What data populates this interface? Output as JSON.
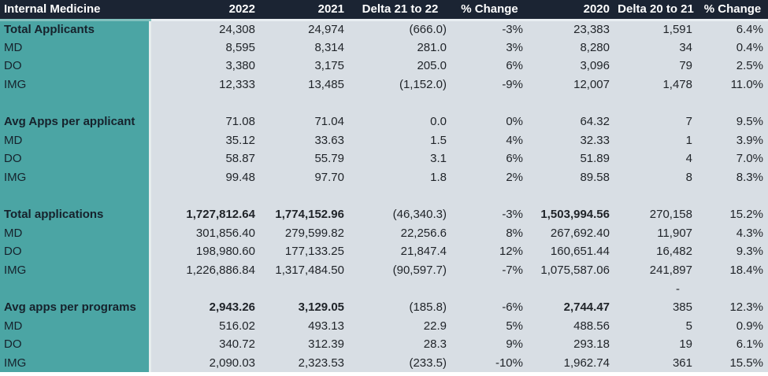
{
  "colors": {
    "header_bg": "#1B2433",
    "header_text": "#FFFFFF",
    "label_column_bg": "#4BA5A4",
    "body_bg": "#D8DEE4",
    "positive_green": "#21A05F",
    "negative_red": "#C2262E",
    "text": "#1F2328"
  },
  "chart_data": {
    "type": "table",
    "title": "Internal Medicine",
    "columns": [
      "2022",
      "2021",
      "Delta 21 to 22",
      "% Change",
      "2020",
      "Delta 20 to 21",
      "% Change"
    ],
    "rows": [
      {
        "label": "Total Applicants",
        "bold": true,
        "cells": [
          {
            "t": "24,308",
            "c": "black"
          },
          {
            "t": "24,974",
            "c": "black"
          },
          {
            "t": "(666.0)",
            "c": "red"
          },
          {
            "t": "-3%",
            "c": "red"
          },
          {
            "t": "23,383",
            "c": "black"
          },
          {
            "t": "1,591",
            "c": "green"
          },
          {
            "t": "6.4%",
            "c": "green"
          }
        ]
      },
      {
        "label": "MD",
        "bold": false,
        "cells": [
          {
            "t": "8,595",
            "c": "black"
          },
          {
            "t": "8,314",
            "c": "black"
          },
          {
            "t": "281.0",
            "c": "green"
          },
          {
            "t": "3%",
            "c": "green"
          },
          {
            "t": "8,280",
            "c": "black"
          },
          {
            "t": "34",
            "c": "green"
          },
          {
            "t": "0.4%",
            "c": "green"
          }
        ]
      },
      {
        "label": "DO",
        "bold": false,
        "cells": [
          {
            "t": "3,380",
            "c": "black"
          },
          {
            "t": "3,175",
            "c": "black"
          },
          {
            "t": "205.0",
            "c": "green"
          },
          {
            "t": "6%",
            "c": "green"
          },
          {
            "t": "3,096",
            "c": "black"
          },
          {
            "t": "79",
            "c": "green"
          },
          {
            "t": "2.5%",
            "c": "green"
          }
        ]
      },
      {
        "label": "IMG",
        "bold": false,
        "cells": [
          {
            "t": "12,333",
            "c": "black"
          },
          {
            "t": "13,485",
            "c": "black"
          },
          {
            "t": "(1,152.0)",
            "c": "red"
          },
          {
            "t": "-9%",
            "c": "red"
          },
          {
            "t": "12,007",
            "c": "black"
          },
          {
            "t": "1,478",
            "c": "green"
          },
          {
            "t": "11.0%",
            "c": "green"
          }
        ]
      },
      {
        "label": "",
        "bold": false,
        "cells": [
          {
            "t": ""
          },
          {
            "t": ""
          },
          {
            "t": ""
          },
          {
            "t": ""
          },
          {
            "t": ""
          },
          {
            "t": ""
          },
          {
            "t": ""
          }
        ]
      },
      {
        "label": "Avg Apps per applicant",
        "bold": true,
        "cells": [
          {
            "t": "71.08",
            "c": "black"
          },
          {
            "t": "71.04",
            "c": "black"
          },
          {
            "t": "0.0",
            "c": "green"
          },
          {
            "t": "0%",
            "c": "green"
          },
          {
            "t": "64.32",
            "c": "black"
          },
          {
            "t": "7",
            "c": "green"
          },
          {
            "t": "9.5%",
            "c": "green"
          }
        ]
      },
      {
        "label": "MD",
        "bold": false,
        "cells": [
          {
            "t": "35.12",
            "c": "black"
          },
          {
            "t": "33.63",
            "c": "black"
          },
          {
            "t": "1.5",
            "c": "green"
          },
          {
            "t": "4%",
            "c": "green"
          },
          {
            "t": "32.33",
            "c": "black"
          },
          {
            "t": "1",
            "c": "green"
          },
          {
            "t": "3.9%",
            "c": "green"
          }
        ]
      },
      {
        "label": "DO",
        "bold": false,
        "cells": [
          {
            "t": "58.87",
            "c": "black"
          },
          {
            "t": "55.79",
            "c": "black"
          },
          {
            "t": "3.1",
            "c": "green"
          },
          {
            "t": "6%",
            "c": "green"
          },
          {
            "t": "51.89",
            "c": "black"
          },
          {
            "t": "4",
            "c": "green"
          },
          {
            "t": "7.0%",
            "c": "green"
          }
        ]
      },
      {
        "label": "IMG",
        "bold": false,
        "cells": [
          {
            "t": "99.48",
            "c": "black"
          },
          {
            "t": "97.70",
            "c": "black"
          },
          {
            "t": "1.8",
            "c": "green"
          },
          {
            "t": "2%",
            "c": "green"
          },
          {
            "t": "89.58",
            "c": "black"
          },
          {
            "t": "8",
            "c": "green"
          },
          {
            "t": "8.3%",
            "c": "green"
          }
        ]
      },
      {
        "label": "",
        "bold": false,
        "cells": [
          {
            "t": ""
          },
          {
            "t": ""
          },
          {
            "t": ""
          },
          {
            "t": ""
          },
          {
            "t": ""
          },
          {
            "t": ""
          },
          {
            "t": ""
          }
        ]
      },
      {
        "label": "Total applications",
        "bold": true,
        "cells": [
          {
            "t": "1,727,812.64",
            "c": "black",
            "b": true
          },
          {
            "t": "1,774,152.96",
            "c": "black",
            "b": true
          },
          {
            "t": "(46,340.3)",
            "c": "red"
          },
          {
            "t": "-3%",
            "c": "red"
          },
          {
            "t": "1,503,994.56",
            "c": "black",
            "b": true
          },
          {
            "t": "270,158",
            "c": "green"
          },
          {
            "t": "15.2%",
            "c": "green"
          }
        ]
      },
      {
        "label": "MD",
        "bold": false,
        "cells": [
          {
            "t": "301,856.40",
            "c": "black"
          },
          {
            "t": "279,599.82",
            "c": "black"
          },
          {
            "t": "22,256.6",
            "c": "green"
          },
          {
            "t": "8%",
            "c": "green"
          },
          {
            "t": "267,692.40",
            "c": "black"
          },
          {
            "t": "11,907",
            "c": "green"
          },
          {
            "t": "4.3%",
            "c": "green"
          }
        ]
      },
      {
        "label": "DO",
        "bold": false,
        "cells": [
          {
            "t": "198,980.60",
            "c": "black"
          },
          {
            "t": "177,133.25",
            "c": "black"
          },
          {
            "t": "21,847.4",
            "c": "green"
          },
          {
            "t": "12%",
            "c": "green"
          },
          {
            "t": "160,651.44",
            "c": "black"
          },
          {
            "t": "16,482",
            "c": "green"
          },
          {
            "t": "9.3%",
            "c": "green"
          }
        ]
      },
      {
        "label": "IMG",
        "bold": false,
        "cells": [
          {
            "t": "1,226,886.84",
            "c": "black"
          },
          {
            "t": "1,317,484.50",
            "c": "black"
          },
          {
            "t": "(90,597.7)",
            "c": "red"
          },
          {
            "t": "-7%",
            "c": "red"
          },
          {
            "t": "1,075,587.06",
            "c": "black"
          },
          {
            "t": "241,897",
            "c": "green"
          },
          {
            "t": "18.4%",
            "c": "green"
          }
        ]
      },
      {
        "label": "",
        "bold": false,
        "cells": [
          {
            "t": ""
          },
          {
            "t": ""
          },
          {
            "t": ""
          },
          {
            "t": ""
          },
          {
            "t": ""
          },
          {
            "t": "-",
            "c": "green",
            "dash": true
          },
          {
            "t": ""
          }
        ]
      },
      {
        "label": "Avg apps per programs",
        "bold": true,
        "cells": [
          {
            "t": "2,943.26",
            "c": "black",
            "b": true
          },
          {
            "t": "3,129.05",
            "c": "black",
            "b": true
          },
          {
            "t": "(185.8)",
            "c": "red"
          },
          {
            "t": "-6%",
            "c": "red"
          },
          {
            "t": "2,744.47",
            "c": "black",
            "b": true
          },
          {
            "t": "385",
            "c": "green"
          },
          {
            "t": "12.3%",
            "c": "green"
          }
        ]
      },
      {
        "label": "MD",
        "bold": false,
        "cells": [
          {
            "t": "516.02",
            "c": "black"
          },
          {
            "t": "493.13",
            "c": "black"
          },
          {
            "t": "22.9",
            "c": "green"
          },
          {
            "t": "5%",
            "c": "green"
          },
          {
            "t": "488.56",
            "c": "black"
          },
          {
            "t": "5",
            "c": "green"
          },
          {
            "t": "0.9%",
            "c": "green"
          }
        ]
      },
      {
        "label": "DO",
        "bold": false,
        "cells": [
          {
            "t": "340.72",
            "c": "black"
          },
          {
            "t": "312.39",
            "c": "black"
          },
          {
            "t": "28.3",
            "c": "green"
          },
          {
            "t": "9%",
            "c": "green"
          },
          {
            "t": "293.18",
            "c": "black"
          },
          {
            "t": "19",
            "c": "green"
          },
          {
            "t": "6.1%",
            "c": "green"
          }
        ]
      },
      {
        "label": "IMG",
        "bold": false,
        "cells": [
          {
            "t": "2,090.03",
            "c": "black"
          },
          {
            "t": "2,323.53",
            "c": "black"
          },
          {
            "t": "(233.5)",
            "c": "red"
          },
          {
            "t": "-10%",
            "c": "red"
          },
          {
            "t": "1,962.74",
            "c": "black"
          },
          {
            "t": "361",
            "c": "green"
          },
          {
            "t": "15.5%",
            "c": "green"
          }
        ]
      }
    ]
  }
}
